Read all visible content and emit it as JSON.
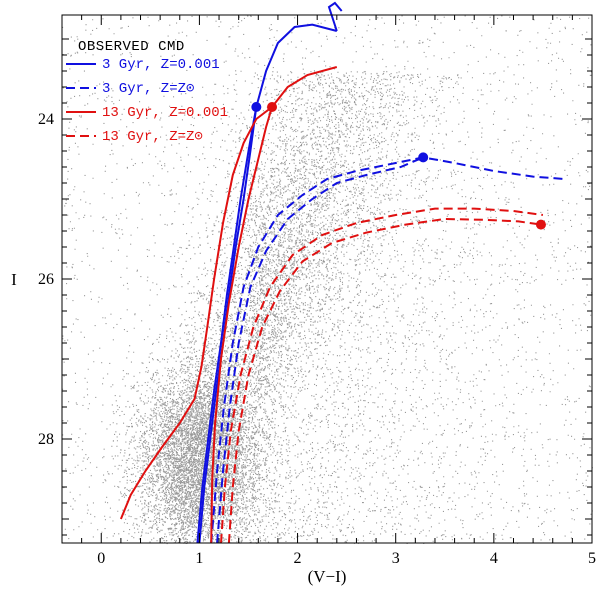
{
  "chart_data": {
    "type": "scatter",
    "title": "OBSERVED CMD",
    "xlabel": "(V−I)",
    "ylabel": "I",
    "xlim": [
      -0.4,
      5.0
    ],
    "ylim": [
      29.3,
      22.7
    ],
    "y_inverted": true,
    "x_ticks": [
      "0",
      "1",
      "2",
      "3",
      "4",
      "5"
    ],
    "y_ticks": [
      "24",
      "26",
      "28"
    ],
    "x_tick_values": [
      0,
      1,
      2,
      3,
      4,
      5
    ],
    "y_tick_values": [
      24,
      26,
      28
    ],
    "point_color": "#9a9a9a",
    "series": [
      {
        "name": "3 Gyr, Z=0.001",
        "color": "#1010e0",
        "dash": false,
        "points": [
          [
            0.98,
            29.3
          ],
          [
            1.03,
            28.6
          ],
          [
            1.09,
            28.0
          ],
          [
            1.15,
            27.4
          ],
          [
            1.22,
            26.8
          ],
          [
            1.28,
            26.2
          ],
          [
            1.35,
            25.6
          ],
          [
            1.42,
            25.0
          ],
          [
            1.5,
            24.4
          ],
          [
            1.58,
            23.85
          ],
          [
            1.68,
            23.4
          ],
          [
            1.8,
            23.05
          ],
          [
            1.97,
            22.85
          ],
          [
            2.15,
            22.82
          ],
          [
            2.4,
            22.9
          ]
        ],
        "marker": [
          1.58,
          23.85
        ],
        "offset_curve": [
          [
            1.0,
            29.3
          ],
          [
            1.05,
            28.6
          ],
          [
            1.11,
            28.0
          ],
          [
            1.17,
            27.4
          ],
          [
            1.24,
            26.8
          ],
          [
            1.3,
            26.2
          ],
          [
            1.37,
            25.6
          ],
          [
            1.45,
            25.0
          ],
          [
            1.52,
            24.4
          ],
          [
            1.58,
            23.85
          ]
        ],
        "extra_curve": [
          [
            2.4,
            22.9
          ],
          [
            2.32,
            22.6
          ],
          [
            2.38,
            22.55
          ],
          [
            2.45,
            22.65
          ]
        ]
      },
      {
        "name": "3 Gyr, Z=Z⊙",
        "color": "#1010e0",
        "dash": true,
        "points": [
          [
            1.12,
            29.3
          ],
          [
            1.18,
            28.4
          ],
          [
            1.25,
            27.6
          ],
          [
            1.34,
            26.8
          ],
          [
            1.45,
            26.1
          ],
          [
            1.6,
            25.6
          ],
          [
            1.8,
            25.2
          ],
          [
            2.05,
            24.95
          ],
          [
            2.3,
            24.75
          ],
          [
            2.6,
            24.65
          ],
          [
            3.0,
            24.55
          ],
          [
            3.28,
            24.48
          ],
          [
            3.6,
            24.55
          ],
          [
            4.0,
            24.65
          ],
          [
            4.4,
            24.72
          ],
          [
            4.72,
            24.75
          ]
        ],
        "marker": [
          3.28,
          24.48
        ],
        "offset_curve": [
          [
            1.18,
            29.3
          ],
          [
            1.24,
            28.4
          ],
          [
            1.31,
            27.6
          ],
          [
            1.4,
            26.8
          ],
          [
            1.52,
            26.1
          ],
          [
            1.68,
            25.65
          ],
          [
            1.9,
            25.25
          ],
          [
            2.15,
            25.0
          ],
          [
            2.4,
            24.8
          ],
          [
            2.7,
            24.7
          ],
          [
            3.05,
            24.6
          ],
          [
            3.28,
            24.48
          ]
        ]
      },
      {
        "name": "13 Gyr, Z=0.001",
        "color": "#e01010",
        "dash": false,
        "points": [
          [
            0.2,
            29.0
          ],
          [
            0.3,
            28.7
          ],
          [
            0.45,
            28.4
          ],
          [
            0.62,
            28.1
          ],
          [
            0.8,
            27.8
          ],
          [
            0.95,
            27.5
          ],
          [
            1.02,
            27.1
          ],
          [
            1.08,
            26.6
          ],
          [
            1.15,
            26.0
          ],
          [
            1.24,
            25.3
          ],
          [
            1.34,
            24.7
          ],
          [
            1.45,
            24.3
          ],
          [
            1.58,
            24.0
          ],
          [
            1.74,
            23.85
          ],
          [
            1.9,
            23.6
          ],
          [
            2.1,
            23.45
          ],
          [
            2.4,
            23.35
          ]
        ],
        "marker": [
          1.74,
          23.85
        ],
        "offset_curve": [
          [
            1.12,
            29.3
          ],
          [
            1.13,
            28.5
          ],
          [
            1.16,
            27.8
          ],
          [
            1.22,
            27.0
          ],
          [
            1.3,
            26.3
          ],
          [
            1.4,
            25.6
          ],
          [
            1.5,
            25.0
          ],
          [
            1.6,
            24.5
          ],
          [
            1.68,
            24.1
          ],
          [
            1.74,
            23.85
          ]
        ]
      },
      {
        "name": "13 Gyr, Z=Z⊙",
        "color": "#e01010",
        "dash": true,
        "points": [
          [
            1.22,
            29.3
          ],
          [
            1.26,
            28.6
          ],
          [
            1.32,
            27.9
          ],
          [
            1.42,
            27.2
          ],
          [
            1.55,
            26.6
          ],
          [
            1.72,
            26.1
          ],
          [
            1.95,
            25.7
          ],
          [
            2.25,
            25.45
          ],
          [
            2.6,
            25.3
          ],
          [
            3.0,
            25.2
          ],
          [
            3.4,
            25.12
          ],
          [
            3.8,
            25.12
          ],
          [
            4.2,
            25.15
          ],
          [
            4.5,
            25.2
          ]
        ],
        "marker": [
          4.48,
          25.32
        ],
        "offset_curve": [
          [
            1.3,
            29.3
          ],
          [
            1.34,
            28.6
          ],
          [
            1.4,
            27.9
          ],
          [
            1.5,
            27.2
          ],
          [
            1.64,
            26.6
          ],
          [
            1.82,
            26.15
          ],
          [
            2.05,
            25.78
          ],
          [
            2.35,
            25.55
          ],
          [
            2.7,
            25.42
          ],
          [
            3.1,
            25.32
          ],
          [
            3.5,
            25.25
          ],
          [
            3.9,
            25.26
          ],
          [
            4.25,
            25.28
          ],
          [
            4.48,
            25.32
          ]
        ]
      }
    ],
    "legend_position": "top-left"
  }
}
